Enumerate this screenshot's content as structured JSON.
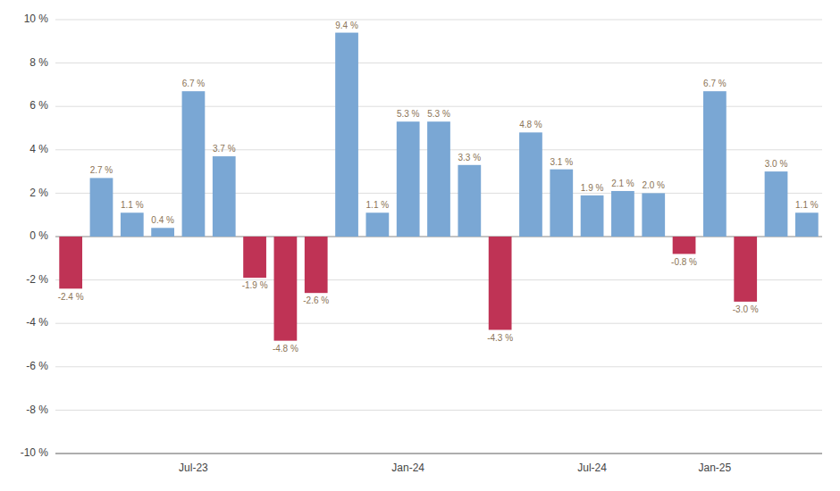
{
  "chart_data": {
    "type": "bar",
    "categories": [
      null,
      null,
      null,
      null,
      "Jul-23",
      null,
      null,
      null,
      null,
      null,
      null,
      "Jan-24",
      null,
      null,
      null,
      null,
      null,
      "Jul-24",
      null,
      null,
      null,
      "Jan-25",
      null,
      null,
      null
    ],
    "values": [
      -2.4,
      2.7,
      1.1,
      0.4,
      6.7,
      3.7,
      -1.9,
      -4.8,
      -2.6,
      9.4,
      1.1,
      5.3,
      5.3,
      3.3,
      -4.3,
      4.8,
      3.1,
      1.9,
      2.1,
      2.0,
      -0.8,
      6.7,
      -3.0,
      3.0,
      1.1
    ],
    "value_labels": [
      "-2.4 %",
      "2.7 %",
      "1.1 %",
      "0.4 %",
      "6.7 %",
      "3.7 %",
      "-1.9 %",
      "-4.8 %",
      "-2.6 %",
      "9.4 %",
      "1.1 %",
      "5.3 %",
      "5.3 %",
      "3.3 %",
      "-4.3 %",
      "4.8 %",
      "3.1 %",
      "1.9 %",
      "2.1 %",
      "2.0 %",
      "-0.8 %",
      "6.7 %",
      "-3.0 %",
      "3.0 %",
      "1.1 %"
    ],
    "colors": [
      "#bf3355",
      "#7aa7d4",
      "#7aa7d4",
      "#7aa7d4",
      "#7aa7d4",
      "#7aa7d4",
      "#bf3355",
      "#bf3355",
      "#bf3355",
      "#7aa7d4",
      "#7aa7d4",
      "#7aa7d4",
      "#7aa7d4",
      "#7aa7d4",
      "#bf3355",
      "#7aa7d4",
      "#7aa7d4",
      "#7aa7d4",
      "#7aa7d4",
      "#7aa7d4",
      "#bf3355",
      "#7aa7d4",
      "#bf3355",
      "#7aa7d4",
      "#7aa7d4"
    ],
    "ylim": [
      -10,
      10
    ],
    "yticks": [
      {
        "value": -10,
        "label": "-10 %"
      },
      {
        "value": -8,
        "label": "-8 %"
      },
      {
        "value": -6,
        "label": "-6 %"
      },
      {
        "value": -4,
        "label": "-4 %"
      },
      {
        "value": -2,
        "label": "-2 %"
      },
      {
        "value": 0,
        "label": "0 %"
      },
      {
        "value": 2,
        "label": "2 %"
      },
      {
        "value": 4,
        "label": "4 %"
      },
      {
        "value": 6,
        "label": "6 %"
      },
      {
        "value": 8,
        "label": "8 %"
      },
      {
        "value": 10,
        "label": "10 %"
      }
    ],
    "grid": true,
    "data_labels": true
  }
}
